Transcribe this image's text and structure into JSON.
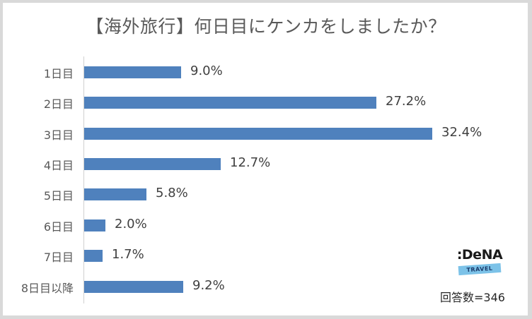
{
  "chart_data": {
    "type": "bar",
    "orientation": "horizontal",
    "title": "【海外旅行】何日目にケンカをしましたか？",
    "categories": [
      "1日目",
      "2日目",
      "3日目",
      "4日目",
      "5日目",
      "6日目",
      "7日目",
      "8日目以降"
    ],
    "values": [
      9.0,
      27.2,
      32.4,
      12.7,
      5.8,
      2.0,
      1.7,
      9.2
    ],
    "value_labels": [
      "9.0%",
      "27.2%",
      "32.4%",
      "12.7%",
      "5.8%",
      "2.0%",
      "1.7%",
      "9.2%"
    ],
    "unit": "%",
    "xlabel": "",
    "ylabel": "",
    "xlim": [
      0,
      35
    ],
    "grid": false,
    "legend": null,
    "bar_color": "#4f81bd",
    "annotations": [
      "回答数=346"
    ]
  },
  "logo": {
    "name": ":DeNA",
    "sub": "TRAVEL"
  },
  "footer": {
    "respondents": "回答数=346"
  }
}
